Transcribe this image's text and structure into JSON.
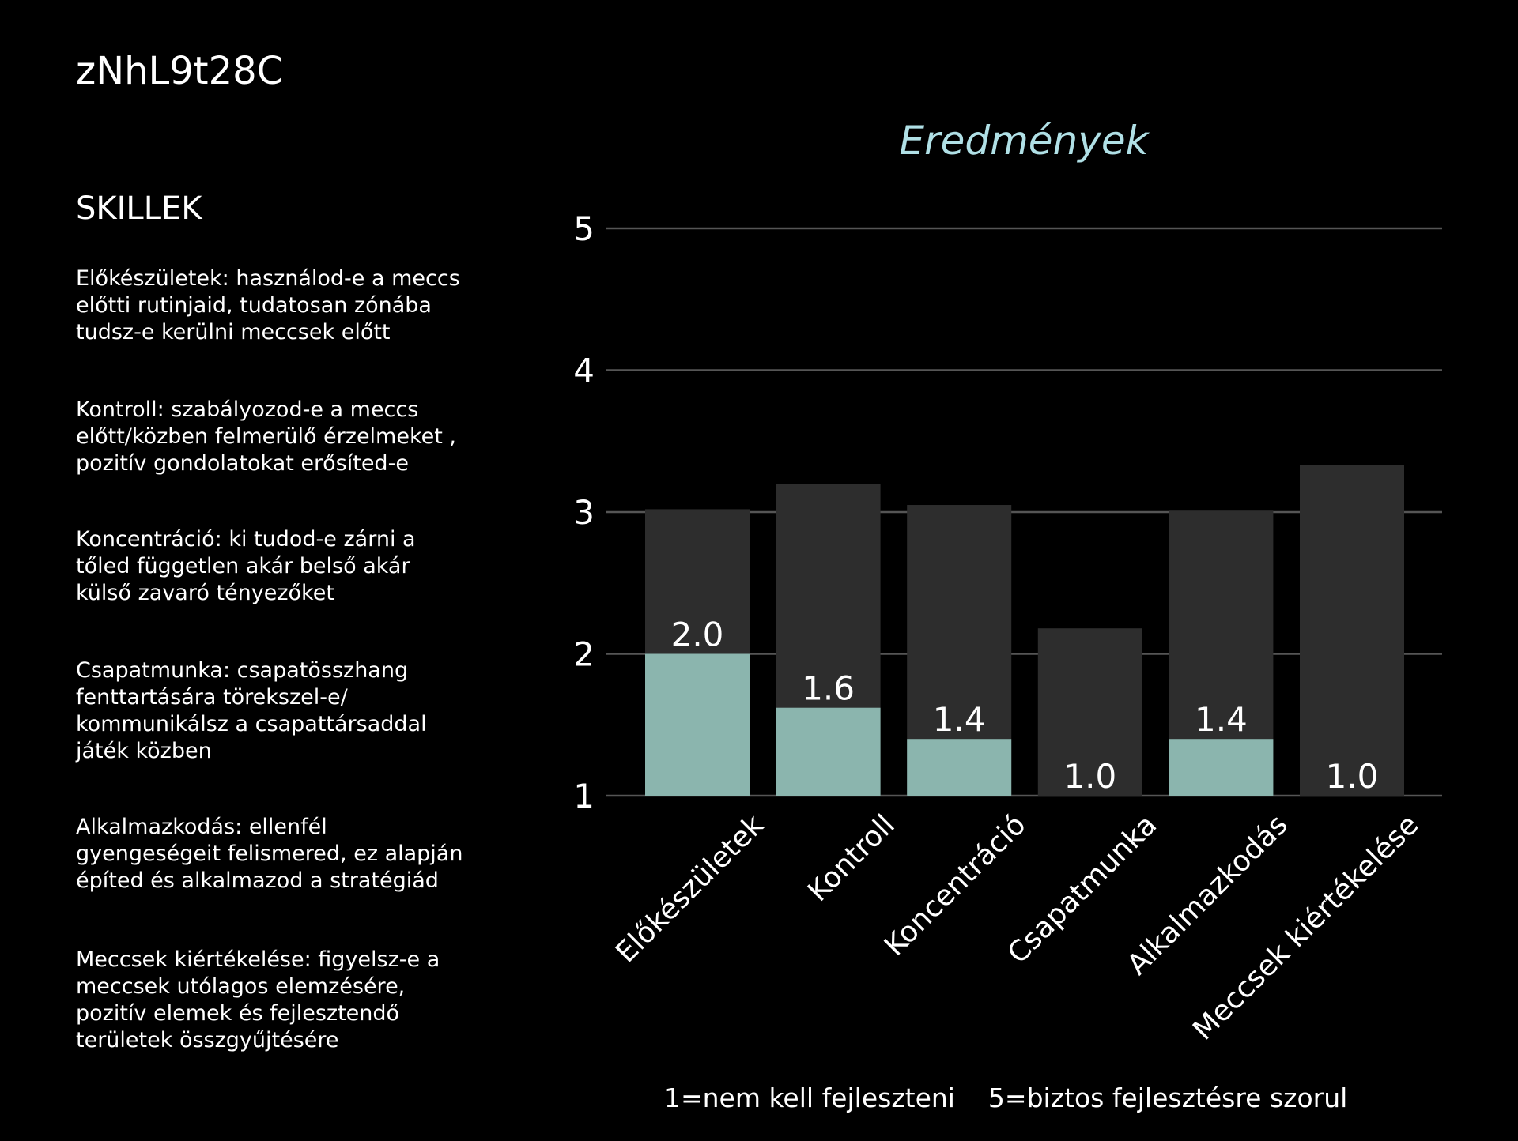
{
  "page_id": "zNhL9t28C",
  "skills_panel": {
    "title": "SKILLEK",
    "items": [
      "Előkészületek: használod-e a  meccs\nelőtti rutinjaid, tudatosan zónába\ntudsz-e kerülni  meccsek előtt",
      "Kontroll: szabályozod-e a meccs\nelőtt/közben felmerülő érzelmeket ,\npozitív gondolatokat erősíted-e",
      "Koncentráció: ki tudod-e zárni a\ntőled független akár belső akár\nkülső zavaró tényezőket",
      "Csapatmunka: csapatösszhang\nfenttartására törekszel-e/\nkommunikálsz a csapattársaddal\njáték közben",
      "Alkalmazkodás: ellenfél\ngyengeségeit felismered, ez alapján\népíted és alkalmazod a stratégiád",
      "Meccsek kiértékelése: figyelsz-e a\nmeccsek utólagos elemzésére,\npozitív elemek és fejlesztendő\nterületek összgyűjtésére"
    ]
  },
  "footer_note": "1=nem kell fejleszteni    5=biztos fejlesztésre szorul",
  "chart_data": {
    "type": "bar",
    "title": "Eredmények",
    "categories": [
      "Előkészületek",
      "Kontroll",
      "Koncentráció",
      "Csapatmunka",
      "Alkalmazkodás",
      "Meccsek kiértékelése"
    ],
    "series": [
      {
        "values": [
          3.02,
          3.2,
          3.05,
          2.18,
          3.01,
          3.33
        ],
        "color": "#2d2d2d"
      },
      {
        "values": [
          2.0,
          1.62,
          1.4,
          1.0,
          1.4,
          1.0
        ],
        "color": "#8bb5ae"
      }
    ],
    "data_labels": [
      "2.0",
      "1.6",
      "1.4",
      "1.0",
      "1.4",
      "1.0"
    ],
    "yticks": [
      "1",
      "2",
      "3",
      "4",
      "5"
    ],
    "ylim": [
      1,
      5
    ],
    "grid": true,
    "title_color": "#b0e0e6",
    "grid_color": "#555555"
  }
}
